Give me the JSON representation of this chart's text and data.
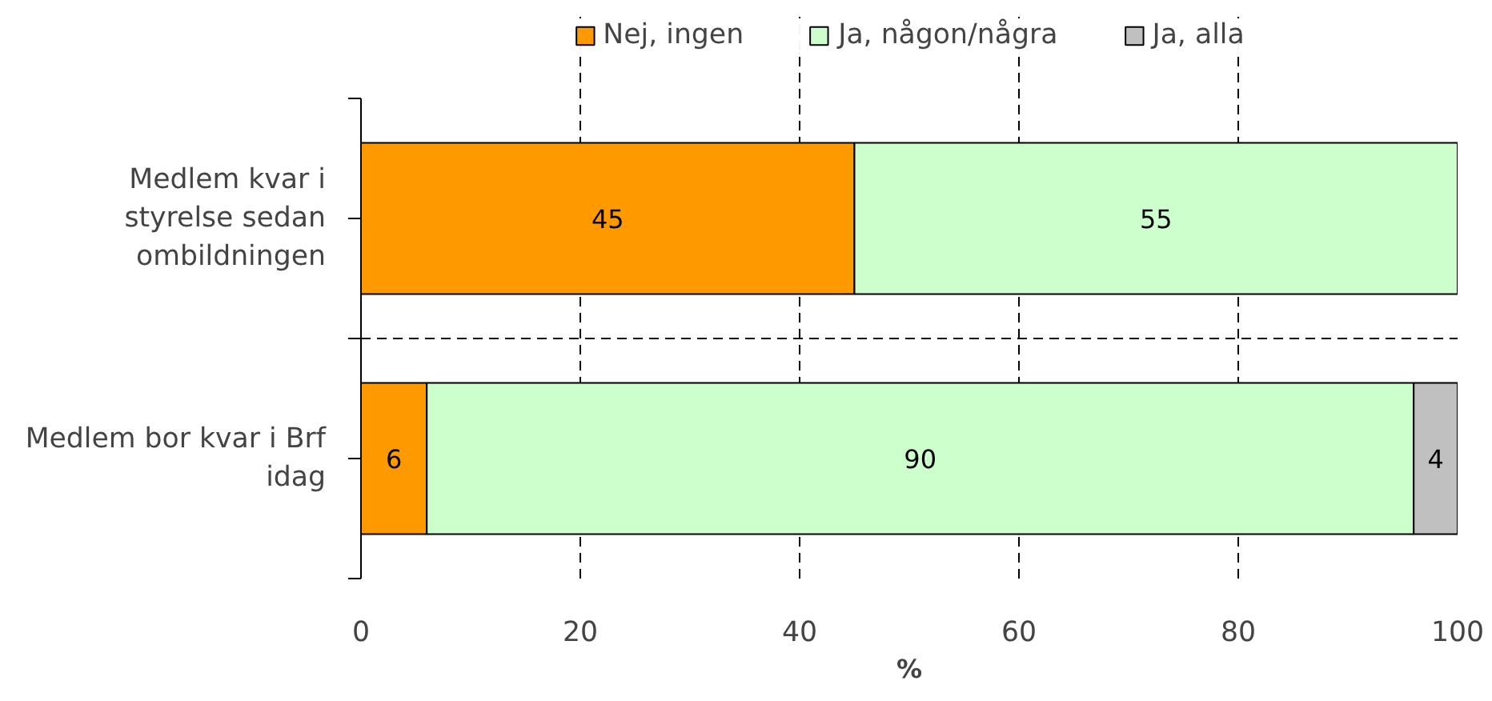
{
  "chart_data": {
    "type": "bar",
    "orientation": "horizontal",
    "stacked": true,
    "categories": [
      "Medlem kvar i styrelse sedan ombildningen",
      "Medlem bor kvar i Brf idag"
    ],
    "series": [
      {
        "name": "Nej, ingen",
        "color": "#ff9900",
        "values": [
          45,
          6
        ]
      },
      {
        "name": "Ja, någon/några",
        "color": "#ccffcc",
        "values": [
          55,
          90
        ]
      },
      {
        "name": "Ja, alla",
        "color": "#c0c0c0",
        "values": [
          null,
          4
        ]
      }
    ],
    "xlabel": "%",
    "xlim": [
      0,
      100
    ],
    "xticks": [
      0,
      20,
      40,
      60,
      80,
      100
    ],
    "grid": true,
    "legend": "top",
    "data_labels": true
  }
}
